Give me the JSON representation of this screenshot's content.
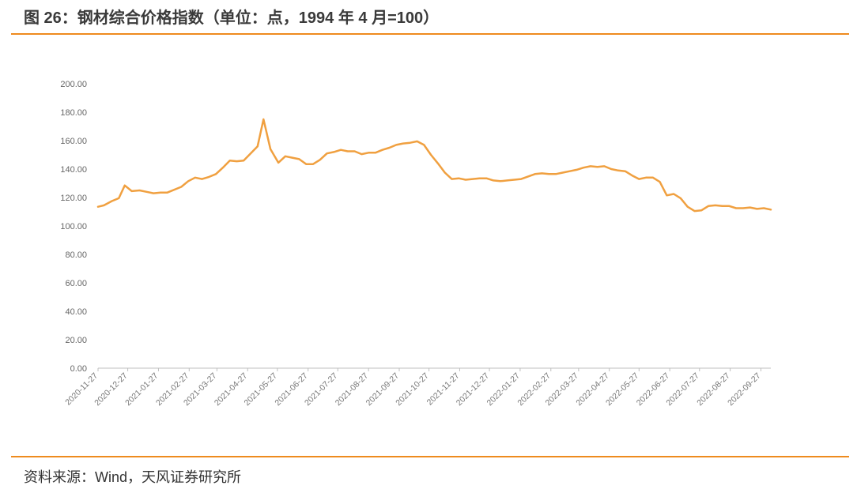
{
  "figure": {
    "title": "图 26：钢材综合价格指数（单位：点，1994 年 4 月=100）",
    "source": "资料来源：Wind，天风证券研究所"
  },
  "colors": {
    "accent": "#ee8b1e",
    "line": "#f0a040",
    "axis": "#bfbfbf"
  },
  "chart_data": {
    "type": "line",
    "title": "",
    "xlabel": "",
    "ylabel": "",
    "ylim": [
      0,
      200
    ],
    "yticks": [
      "0.00",
      "20.00",
      "40.00",
      "60.00",
      "80.00",
      "100.00",
      "120.00",
      "140.00",
      "160.00",
      "180.00",
      "200.00"
    ],
    "xticks": [
      "2020-11-27",
      "2020-12-27",
      "2021-01-27",
      "2021-02-27",
      "2021-03-27",
      "2021-04-27",
      "2021-05-27",
      "2021-06-27",
      "2021-07-27",
      "2021-08-27",
      "2021-09-27",
      "2021-10-27",
      "2021-11-27",
      "2021-12-27",
      "2022-01-27",
      "2022-02-27",
      "2022-03-27",
      "2022-04-27",
      "2022-05-27",
      "2022-06-27",
      "2022-07-27",
      "2022-08-27",
      "2022-09-27"
    ],
    "grid": false,
    "legend": "none",
    "series": [
      {
        "x": [
          "2020-11-27",
          "2020-12-03",
          "2020-12-11",
          "2020-12-18",
          "2020-12-24",
          "2020-12-31",
          "2021-01-08",
          "2021-01-15",
          "2021-01-22",
          "2021-01-29",
          "2021-02-05",
          "2021-02-19",
          "2021-02-26",
          "2021-03-05",
          "2021-03-12",
          "2021-03-19",
          "2021-03-26",
          "2021-04-02",
          "2021-04-09",
          "2021-04-16",
          "2021-04-23",
          "2021-04-30",
          "2021-05-07",
          "2021-05-13",
          "2021-05-20",
          "2021-05-28",
          "2021-06-04",
          "2021-06-11",
          "2021-06-18",
          "2021-06-25",
          "2021-07-02",
          "2021-07-09",
          "2021-07-16",
          "2021-07-23",
          "2021-07-30",
          "2021-08-06",
          "2021-08-13",
          "2021-08-20",
          "2021-08-27",
          "2021-09-03",
          "2021-09-10",
          "2021-09-17",
          "2021-09-24",
          "2021-10-01",
          "2021-10-08",
          "2021-10-15",
          "2021-10-22",
          "2021-10-29",
          "2021-11-05",
          "2021-11-12",
          "2021-11-19",
          "2021-11-26",
          "2021-12-03",
          "2021-12-10",
          "2021-12-17",
          "2021-12-24",
          "2021-12-31",
          "2022-01-07",
          "2022-01-14",
          "2022-01-21",
          "2022-01-28",
          "2022-02-11",
          "2022-02-18",
          "2022-02-25",
          "2022-03-04",
          "2022-03-11",
          "2022-03-18",
          "2022-03-25",
          "2022-04-01",
          "2022-04-08",
          "2022-04-15",
          "2022-04-22",
          "2022-04-29",
          "2022-05-06",
          "2022-05-13",
          "2022-05-20",
          "2022-05-27",
          "2022-06-03",
          "2022-06-10",
          "2022-06-17",
          "2022-06-24",
          "2022-07-01",
          "2022-07-08",
          "2022-07-15",
          "2022-07-22",
          "2022-07-29",
          "2022-08-05",
          "2022-08-12",
          "2022-08-19",
          "2022-08-26",
          "2022-09-02",
          "2022-09-09",
          "2022-09-16",
          "2022-09-23",
          "2022-09-30",
          "2022-10-07"
        ],
        "values": [
          113.5,
          114.5,
          117.5,
          119.5,
          128.5,
          124.5,
          125.0,
          124.0,
          123.0,
          123.5,
          123.5,
          127.5,
          131.5,
          134.0,
          133.0,
          134.5,
          136.5,
          141.0,
          146.0,
          145.5,
          146.0,
          151.0,
          156.0,
          175.0,
          154.0,
          144.5,
          149.0,
          148.0,
          147.0,
          143.5,
          143.5,
          146.5,
          151.0,
          152.0,
          153.5,
          152.5,
          152.5,
          150.5,
          151.5,
          151.5,
          153.5,
          155.0,
          157.0,
          158.0,
          158.5,
          159.5,
          157.0,
          150.0,
          144.0,
          137.5,
          133.0,
          133.5,
          132.5,
          133.0,
          133.5,
          133.5,
          132.0,
          131.5,
          132.0,
          132.5,
          133.0,
          136.5,
          137.0,
          136.5,
          136.5,
          137.5,
          138.5,
          139.5,
          141.0,
          142.0,
          141.5,
          142.0,
          140.0,
          139.0,
          138.5,
          135.5,
          133.0,
          134.0,
          134.0,
          131.0,
          121.5,
          122.5,
          119.5,
          113.5,
          110.5,
          111.0,
          114.0,
          114.5,
          114.0,
          114.0,
          112.5,
          112.5,
          113.0,
          112.0,
          112.5,
          111.5
        ]
      }
    ]
  }
}
